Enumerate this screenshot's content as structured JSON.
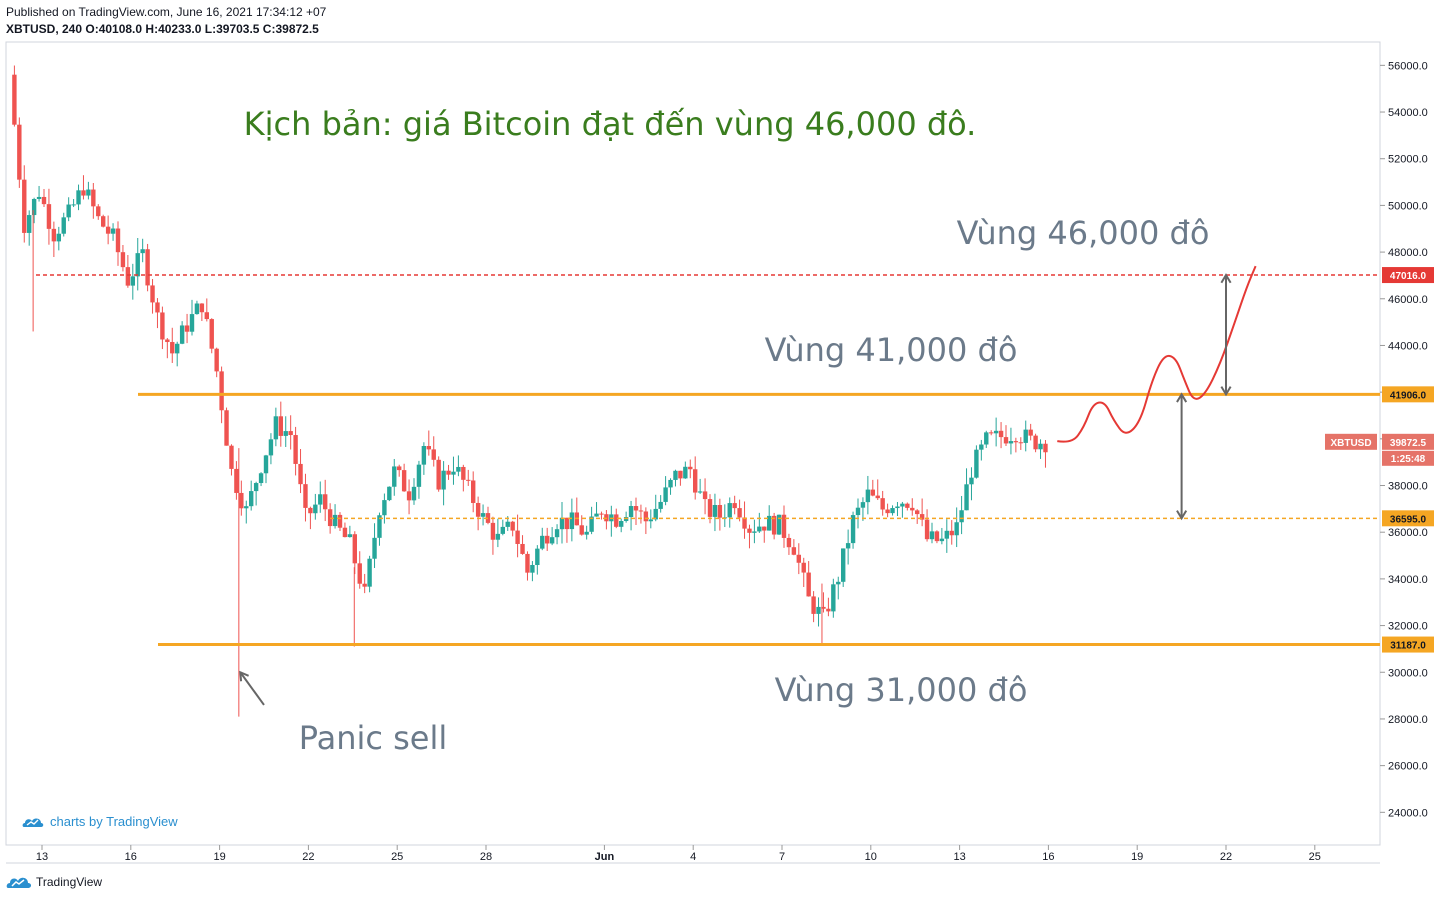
{
  "header": {
    "published": "Published on TradingView.com, June 16, 2021 17:34:12 +07",
    "symbol_line": "XBTUSD, 240 O:40108.0 H:40233.0 L:39703.5 C:39872.5"
  },
  "watermark": {
    "text": "charts by TradingView",
    "icon": "tradingview-cloud-icon"
  },
  "footer": {
    "brand": "TradingView",
    "icon": "tradingview-logo-icon"
  },
  "colors": {
    "up": "#26a69a",
    "down": "#ef5350",
    "support": "#f5a623",
    "target": "#e53935",
    "annotation": "#6b7a8a",
    "title": "#3a7d1e",
    "scenario": "#e53935"
  },
  "chart_data": {
    "type": "candlestick",
    "title": "Kịch bản: giá Bitcoin đạt đến vùng 46,000 đô.",
    "ylim": [
      22600,
      57000
    ],
    "yticks": [
      24000,
      26000,
      28000,
      30000,
      32000,
      34000,
      36000,
      38000,
      40000,
      42000,
      44000,
      46000,
      48000,
      50000,
      52000,
      54000,
      56000
    ],
    "ytick_labels": [
      "24000.0",
      "26000.0",
      "28000.0",
      "30000.0",
      "32000.0",
      "34000.0",
      "36000.0",
      "38000.0",
      "40000.0",
      "42000.0",
      "44000.0",
      "46000.0",
      "48000.0",
      "50000.0",
      "52000.0",
      "54000.0",
      "56000.0"
    ],
    "xticks": [
      {
        "label": "13",
        "day": 13
      },
      {
        "label": "16",
        "day": 16
      },
      {
        "label": "19",
        "day": 19
      },
      {
        "label": "22",
        "day": 22
      },
      {
        "label": "25",
        "day": 25
      },
      {
        "label": "28",
        "day": 28
      },
      {
        "label": "Jun",
        "day": 32
      },
      {
        "label": "4",
        "day": 35
      },
      {
        "label": "7",
        "day": 38
      },
      {
        "label": "10",
        "day": 41
      },
      {
        "label": "13",
        "day": 44
      },
      {
        "label": "16",
        "day": 47
      },
      {
        "label": "19",
        "day": 50
      },
      {
        "label": "22",
        "day": 53
      },
      {
        "label": "25",
        "day": 56
      }
    ],
    "horizontal_levels": [
      {
        "value": 47016,
        "label": "47016.0",
        "style": "dashed",
        "color": "#e53935"
      },
      {
        "value": 41906,
        "label": "41906.0",
        "style": "solid",
        "color": "#f5a623"
      },
      {
        "value": 36595,
        "label": "36595.0",
        "style": "dashed",
        "color": "#f5a623"
      },
      {
        "value": 31187,
        "label": "31187.0",
        "style": "solid",
        "color": "#f5a623"
      }
    ],
    "last_price": {
      "symbol": "XBTUSD",
      "value": 39872.5,
      "label": "39872.5",
      "countdown": "1:25:48"
    },
    "annotations": [
      {
        "text": "Vùng 46,000 đô"
      },
      {
        "text": "Vùng 41,000 đô"
      },
      {
        "text": "Vùng 31,000 đô"
      },
      {
        "text": "Panic sell"
      }
    ],
    "price_path": [
      [
        12.0,
        55600
      ],
      [
        12.5,
        49200
      ],
      [
        13.0,
        50600
      ],
      [
        13.5,
        48800
      ],
      [
        14.0,
        49600
      ],
      [
        14.5,
        50800
      ],
      [
        15.0,
        49400
      ],
      [
        15.5,
        48600
      ],
      [
        16.0,
        46800
      ],
      [
        16.5,
        47900
      ],
      [
        17.0,
        45200
      ],
      [
        17.5,
        43700
      ],
      [
        18.0,
        44900
      ],
      [
        18.5,
        45800
      ],
      [
        19.0,
        42900
      ],
      [
        19.5,
        38600
      ],
      [
        20.0,
        36900
      ],
      [
        20.5,
        38900
      ],
      [
        21.0,
        40600
      ],
      [
        21.5,
        40200
      ],
      [
        22.0,
        36600
      ],
      [
        22.5,
        37400
      ],
      [
        23.0,
        36300
      ],
      [
        23.5,
        35500
      ],
      [
        24.0,
        33300
      ],
      [
        24.5,
        37100
      ],
      [
        25.0,
        38600
      ],
      [
        25.5,
        37700
      ],
      [
        26.0,
        39700
      ],
      [
        26.5,
        38200
      ],
      [
        27.0,
        38900
      ],
      [
        27.5,
        37800
      ],
      [
        28.0,
        36600
      ],
      [
        28.5,
        35700
      ],
      [
        29.0,
        36300
      ],
      [
        29.5,
        34300
      ],
      [
        30.0,
        35700
      ],
      [
        30.5,
        36500
      ],
      [
        31.0,
        36400
      ],
      [
        31.5,
        35900
      ],
      [
        32.0,
        37000
      ],
      [
        32.5,
        36600
      ],
      [
        33.0,
        37200
      ],
      [
        33.5,
        36500
      ],
      [
        34.0,
        37300
      ],
      [
        34.5,
        38400
      ],
      [
        35.0,
        38700
      ],
      [
        35.5,
        37000
      ],
      [
        36.0,
        36700
      ],
      [
        36.5,
        37400
      ],
      [
        37.0,
        36200
      ],
      [
        37.5,
        36400
      ],
      [
        38.0,
        36300
      ],
      [
        38.5,
        35400
      ],
      [
        39.0,
        33100
      ],
      [
        39.5,
        32300
      ],
      [
        40.0,
        34100
      ],
      [
        40.5,
        36500
      ],
      [
        41.0,
        37600
      ],
      [
        41.5,
        37000
      ],
      [
        42.0,
        37400
      ],
      [
        42.5,
        37300
      ],
      [
        43.0,
        35700
      ],
      [
        43.5,
        35600
      ],
      [
        44.0,
        36200
      ],
      [
        44.5,
        38700
      ],
      [
        45.0,
        39900
      ],
      [
        45.5,
        40100
      ],
      [
        46.0,
        40300
      ],
      [
        46.5,
        39900
      ],
      [
        47.0,
        39872
      ]
    ],
    "wicks": [
      {
        "day": 19.65,
        "high": 39600,
        "low": 28100
      },
      {
        "day": 23.55,
        "high": 34500,
        "low": 31100
      },
      {
        "day": 39.35,
        "high": 33800,
        "low": 31200
      },
      {
        "day": 12.7,
        "high": 49800,
        "low": 44600
      }
    ],
    "scenario_path": [
      [
        47.3,
        39900
      ],
      [
        47.8,
        39800
      ],
      [
        48.2,
        40500
      ],
      [
        48.5,
        41500
      ],
      [
        48.9,
        41600
      ],
      [
        49.2,
        40800
      ],
      [
        49.6,
        40100
      ],
      [
        50.1,
        40700
      ],
      [
        50.5,
        42500
      ],
      [
        50.9,
        43600
      ],
      [
        51.3,
        43500
      ],
      [
        51.6,
        42500
      ],
      [
        51.9,
        41600
      ],
      [
        52.3,
        41900
      ],
      [
        52.8,
        43200
      ],
      [
        53.3,
        45000
      ],
      [
        53.7,
        46500
      ],
      [
        54.0,
        47400
      ]
    ],
    "arrows": [
      {
        "day": 53.0,
        "from": 41906,
        "to": 47016
      },
      {
        "day": 51.5,
        "from": 36595,
        "to": 41906
      },
      {
        "from_day": 20.5,
        "from_value": 28600,
        "to_day": 19.7,
        "to_value": 30000
      }
    ]
  }
}
